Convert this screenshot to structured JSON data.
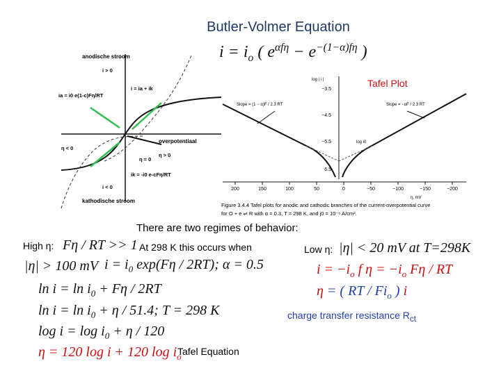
{
  "title": "Butler-Volmer Equation",
  "main_equation": {
    "color": "#111",
    "parts": [
      {
        "t": "i = i"
      },
      {
        "t": "o",
        "pos": "sub"
      },
      {
        "t": " ( e"
      },
      {
        "t": "αfη",
        "pos": "sup"
      },
      {
        "t": " − e"
      },
      {
        "t": "−(1−α)fη",
        "pos": "sup"
      },
      {
        "t": " )"
      }
    ]
  },
  "figure1": {
    "labels": [
      "anodische stroom",
      "i > 0",
      "i = ia + ik",
      "ia = i0 e(1-c)Fη/RT",
      "η < 0",
      "overpotentiaal",
      "η > 0",
      "η = 0",
      "ik = -i0 e-cFη/RT",
      "i < 0",
      "kathodische stroom"
    ]
  },
  "tafel": {
    "heading": "Tafel Plot",
    "y_axis_label": "log | i |",
    "y_ticks": [
      "−3.5",
      "−4.5",
      "−5.5",
      "6.5"
    ],
    "x_ticks": [
      "200",
      "150",
      "100",
      "50",
      "0",
      "−50",
      "−100",
      "−150",
      "−200"
    ],
    "x_axis_label": "η, mV",
    "slope_left": "Slope = (1 − α)F / 2.3 RT",
    "slope_right": "Slope = −αF / 2.3 RT",
    "log_i0": "log i0",
    "caption_1": "Figure 3.4.4   Tafel plots for anodic and cathodic branches of the current-overpotential curve",
    "caption_2": "for O + e ⇌ R with α = 0.3, T = 298 K, and j0 = 10⁻⁶ A/cm²."
  },
  "regimes_intro": "There are two regimes of behavior:",
  "high": {
    "label": "High η:",
    "condition": {
      "color": "#111",
      "parts": [
        {
          "t": "Fη / RT >> 1"
        }
      ]
    },
    "note": "At 298 K this occurs when",
    "threshold": {
      "color": "#111",
      "parts": [
        {
          "t": "|η| > 100 mV"
        }
      ]
    },
    "eq1": {
      "color": "#111",
      "parts": [
        {
          "t": "i = i"
        },
        {
          "t": "0",
          "pos": "sub"
        },
        {
          "t": " exp(Fη / 2RT); α = 0.5"
        }
      ]
    },
    "eq2": {
      "color": "#111",
      "parts": [
        {
          "t": "ln i = ln i"
        },
        {
          "t": "0",
          "pos": "sub"
        },
        {
          "t": " + Fη / 2RT"
        }
      ]
    },
    "eq3": {
      "color": "#111",
      "parts": [
        {
          "t": "ln i = ln i"
        },
        {
          "t": "0",
          "pos": "sub"
        },
        {
          "t": " + η / 51.4; T = 298 K"
        }
      ]
    },
    "eq4": {
      "color": "#111",
      "parts": [
        {
          "t": "log i = log i"
        },
        {
          "t": "0",
          "pos": "sub"
        },
        {
          "t": " + η / 120"
        }
      ]
    },
    "eq5": {
      "color": "#d01010",
      "parts": [
        {
          "t": "η = 120 log i + 120 log i"
        },
        {
          "t": "o",
          "pos": "sub"
        }
      ]
    },
    "eq5_label": "Tafel Equation"
  },
  "low": {
    "label": "Low η:",
    "condition": {
      "color": "#111",
      "parts": [
        {
          "t": "|η| < 20 mV at T=298K"
        }
      ]
    },
    "eq1": {
      "color": "#d01010",
      "parts": [
        {
          "t": "i = −i"
        },
        {
          "t": "o",
          "pos": "sub"
        },
        {
          "t": " f η = −i"
        },
        {
          "t": "o",
          "pos": "sub"
        },
        {
          "t": " Fη / RT"
        }
      ]
    },
    "eq2": {
      "color": "#1f3fb0",
      "parts": [
        {
          "t": "η",
          "color": "#d01010"
        },
        {
          "t": " = ( RT / Fi"
        },
        {
          "t": "o",
          "pos": "sub"
        },
        {
          "t": " ) "
        },
        {
          "t": "i",
          "color": "#d01010"
        }
      ]
    },
    "resistance": {
      "color": "#1f3fb0",
      "parts": [
        {
          "t": "charge transfer resistance R"
        },
        {
          "t": "ct",
          "pos": "sub"
        }
      ]
    }
  }
}
